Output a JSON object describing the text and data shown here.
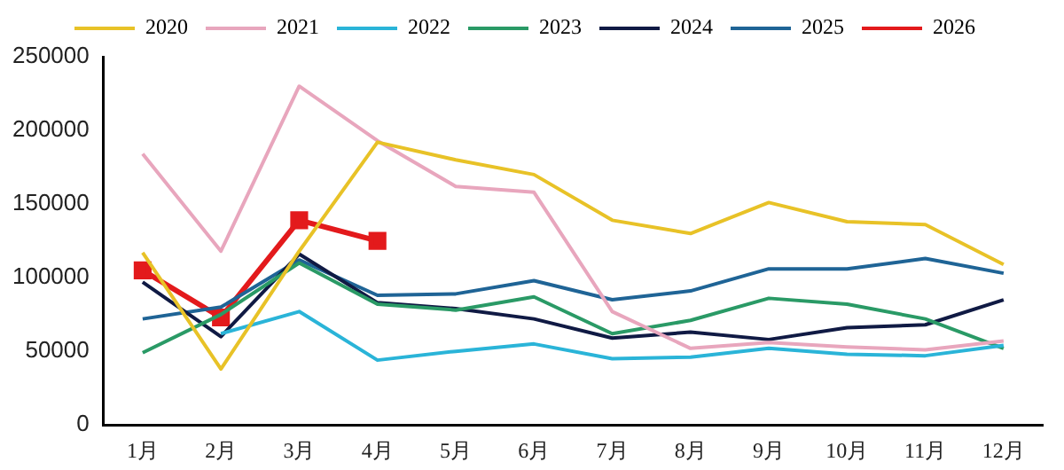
{
  "chart_data": {
    "type": "line",
    "categories": [
      "1月",
      "2月",
      "3月",
      "4月",
      "5月",
      "6月",
      "7月",
      "8月",
      "9月",
      "10月",
      "11月",
      "12月"
    ],
    "series": [
      {
        "name": "2020",
        "color": "#e8c227",
        "values": [
          117000,
          38000,
          118000,
          192000,
          180000,
          170000,
          139000,
          130000,
          151000,
          138000,
          136000,
          109000
        ]
      },
      {
        "name": "2021",
        "color": "#e8a6bd",
        "values": [
          184000,
          118000,
          230000,
          193000,
          162000,
          158000,
          77000,
          52000,
          56000,
          53000,
          51000,
          57000
        ]
      },
      {
        "name": "2022",
        "color": "#2ab4d8",
        "values": [
          null,
          62000,
          77000,
          44000,
          50000,
          55000,
          45000,
          46000,
          52000,
          48000,
          47000,
          54000
        ]
      },
      {
        "name": "2023",
        "color": "#2a9a66",
        "values": [
          49000,
          75000,
          110000,
          82000,
          78000,
          87000,
          62000,
          71000,
          86000,
          82000,
          72000,
          52000
        ]
      },
      {
        "name": "2024",
        "color": "#101a44",
        "values": [
          97000,
          60000,
          116000,
          83000,
          79000,
          72000,
          59000,
          63000,
          58000,
          66000,
          68000,
          85000
        ]
      },
      {
        "name": "2025",
        "color": "#1f6496",
        "values": [
          72000,
          80000,
          112000,
          88000,
          89000,
          98000,
          85000,
          91000,
          106000,
          106000,
          113000,
          103000
        ]
      },
      {
        "name": "2026",
        "color": "#e31a1c",
        "marker": "square",
        "values": [
          105000,
          73000,
          139000,
          125000,
          null,
          null,
          null,
          null,
          null,
          null,
          null,
          null
        ]
      }
    ],
    "ylim": [
      0,
      250000
    ],
    "yticks": [
      0,
      50000,
      100000,
      150000,
      200000,
      250000
    ],
    "grid": false,
    "legend": "top",
    "marker": "none"
  }
}
